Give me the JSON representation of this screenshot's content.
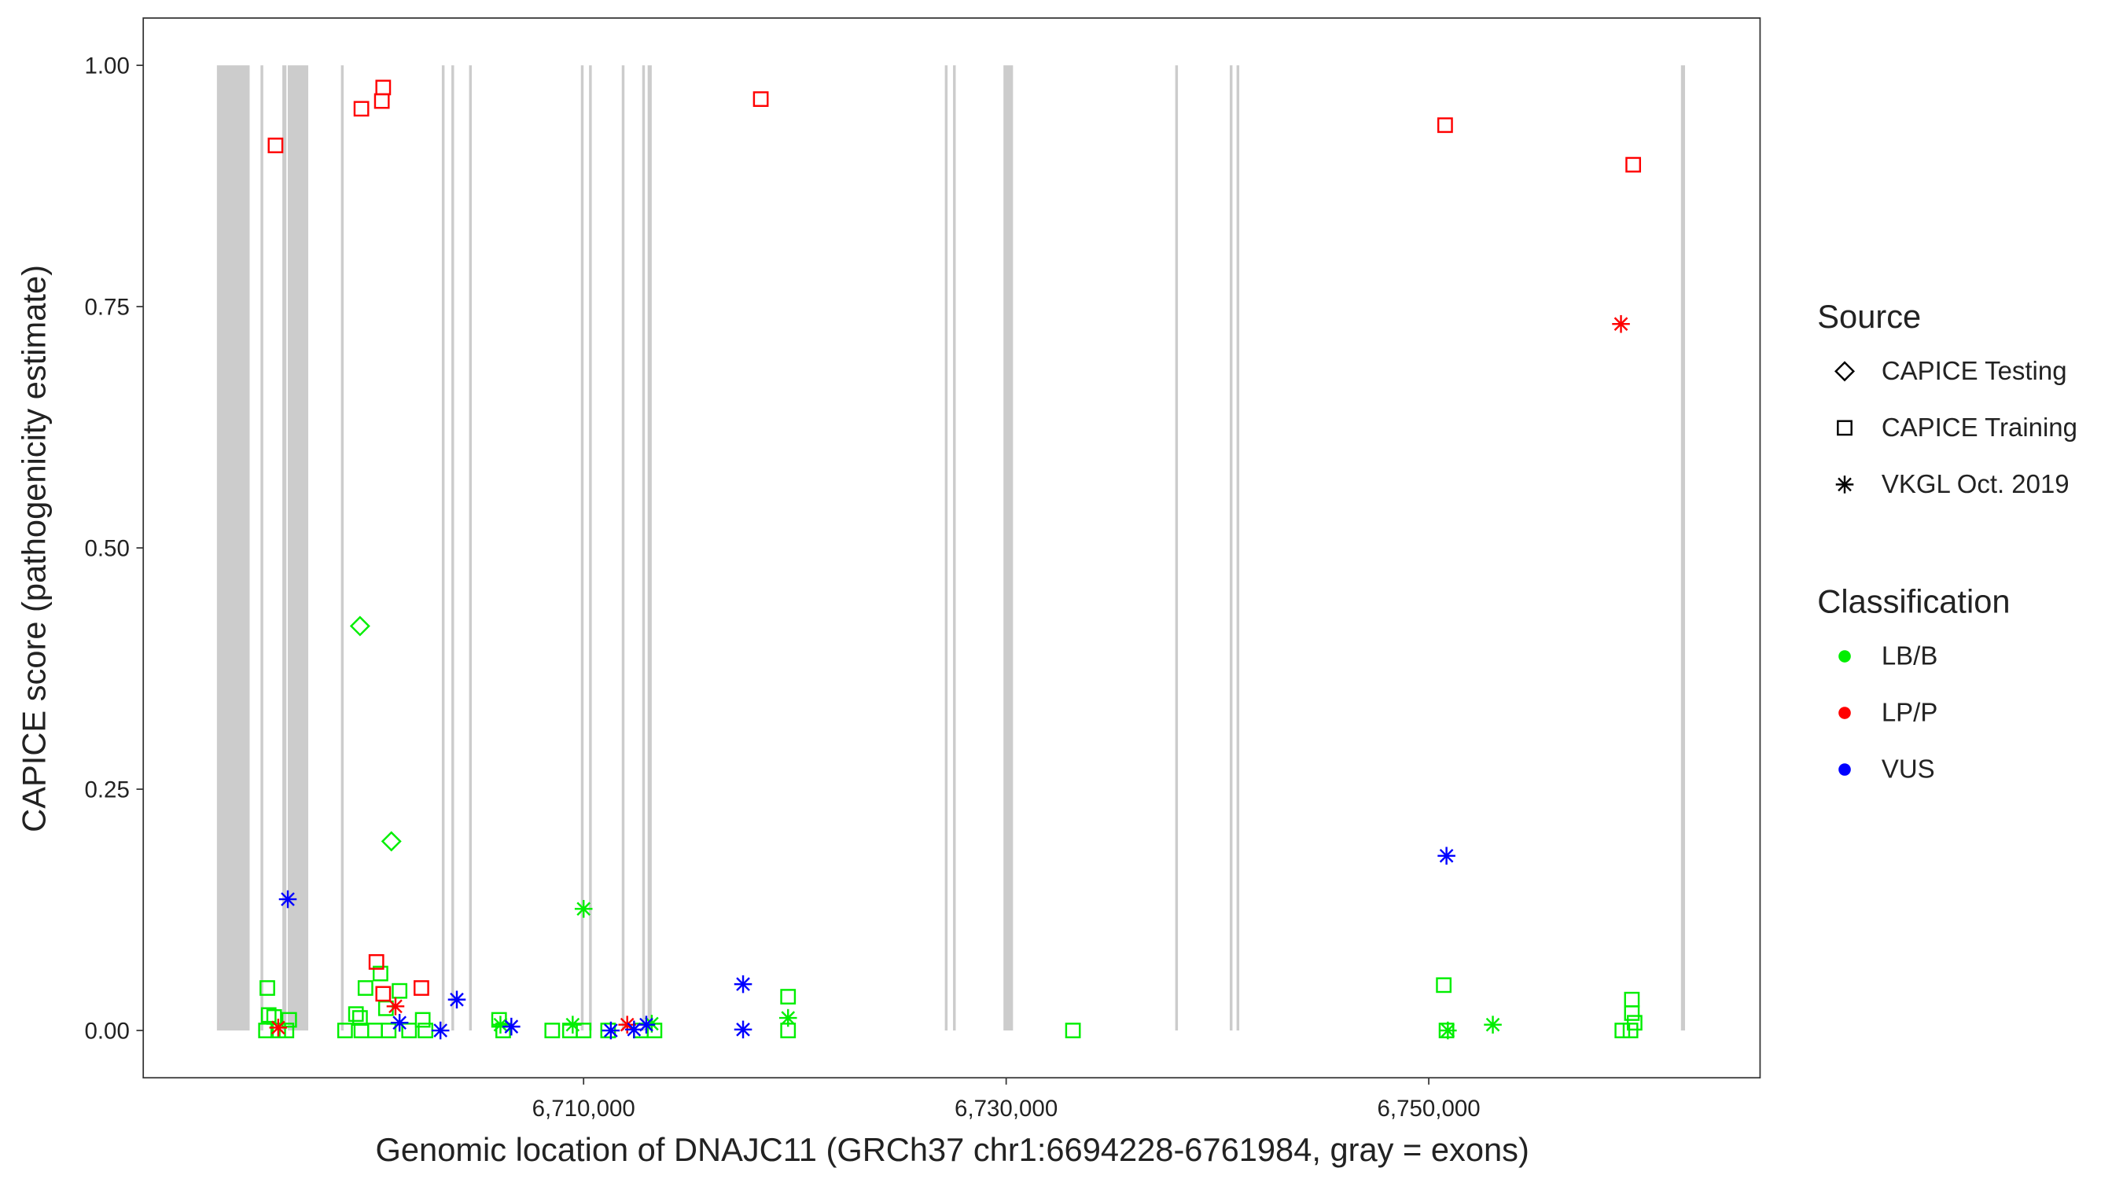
{
  "chart_data": {
    "type": "scatter",
    "x_label": "Genomic location of DNAJC11 (GRCh37 chr1:6694228-6761984, gray = exons)",
    "y_label": "CAPICE score (pathogenicity estimate)",
    "xlim": [
      6689160,
      6765680
    ],
    "ylim": [
      -0.049,
      1.049
    ],
    "xticks": [
      {
        "value": 6710000,
        "label": "6,710,000"
      },
      {
        "value": 6730000,
        "label": "6,730,000"
      },
      {
        "value": 6750000,
        "label": "6,750,000"
      }
    ],
    "yticks": [
      {
        "value": 0,
        "label": "0.00"
      },
      {
        "value": 0.25,
        "label": "0.25"
      },
      {
        "value": 0.5,
        "label": "0.50"
      },
      {
        "value": 0.75,
        "label": "0.75"
      },
      {
        "value": 1,
        "label": "1.00"
      }
    ],
    "exon_color": "#cccccc",
    "exons": [
      [
        6692645,
        6694194
      ],
      [
        6694710,
        6694839
      ],
      [
        6695742,
        6695935
      ],
      [
        6696000,
        6696968
      ],
      [
        6698516,
        6698645
      ],
      [
        6703290,
        6703419
      ],
      [
        6703742,
        6703871
      ],
      [
        6704581,
        6704710
      ],
      [
        6709871,
        6710000
      ],
      [
        6710258,
        6710387
      ],
      [
        6711806,
        6711935
      ],
      [
        6712774,
        6712903
      ],
      [
        6713032,
        6713226
      ],
      [
        6727097,
        6727226
      ],
      [
        6727484,
        6727613
      ],
      [
        6729871,
        6730323
      ],
      [
        6738000,
        6738129
      ],
      [
        6740581,
        6740710
      ],
      [
        6740903,
        6741032
      ],
      [
        6761935,
        6762129
      ]
    ],
    "legend_position": "right",
    "source_title": "Source",
    "sources": [
      {
        "name": "CAPICE Testing",
        "shape": "diamond"
      },
      {
        "name": "CAPICE Training",
        "shape": "square"
      },
      {
        "name": "VKGL Oct. 2019",
        "shape": "asterisk"
      }
    ],
    "classification_title": "Classification",
    "classifications": [
      {
        "name": "LB/B",
        "color": "#00ee00"
      },
      {
        "name": "LP/P",
        "color": "#ff0000"
      },
      {
        "name": "VUS",
        "color": "#0000ff"
      }
    ],
    "series": [
      {
        "source": "CAPICE Training",
        "classification": "LB/B",
        "x": [
          6695032,
          6695097,
          6695355,
          6696065,
          6694968,
          6695548,
          6695935,
          6698710,
          6699226,
          6699419,
          6699677,
          6700387,
          6700645,
          6701290,
          6702387,
          6699484,
          6700129,
          6700774,
          6701742,
          6702516,
          6706000,
          6706194,
          6708516,
          6709355,
          6710000,
          6711161,
          6712710,
          6713355,
          6719677,
          6719677,
          6733161,
          6750710,
          6750839,
          6759613,
          6759613,
          6759742,
          6759161,
          6759548
        ],
        "y": [
          0.044,
          0.016,
          0.014,
          0.011,
          0,
          0,
          0,
          0,
          0.017,
          0.013,
          0.044,
          0.059,
          0.023,
          0.041,
          0.011,
          0,
          0,
          0,
          0,
          0,
          0.011,
          0,
          0,
          0,
          0,
          0,
          0,
          0,
          0.035,
          0,
          0,
          0.047,
          0,
          0.032,
          0.018,
          0.008,
          0,
          0
        ]
      },
      {
        "source": "CAPICE Training",
        "classification": "LP/P",
        "x": [
          6695419,
          6699484,
          6700516,
          6700452,
          6718387,
          6750774,
          6759677,
          6700194,
          6700516,
          6702323
        ],
        "y": [
          0.917,
          0.955,
          0.977,
          0.963,
          0.965,
          0.938,
          0.897,
          0.071,
          0.038,
          0.044
        ]
      },
      {
        "source": "CAPICE Testing",
        "classification": "LB/B",
        "x": [
          6699419,
          6700903
        ],
        "y": [
          0.419,
          0.196
        ]
      },
      {
        "source": "VKGL Oct. 2019",
        "classification": "LB/B",
        "x": [
          6710000,
          6719677,
          6753032,
          6750903,
          6709484,
          6713226,
          6706065
        ],
        "y": [
          0.126,
          0.013,
          0.006,
          0,
          0.006,
          0.007,
          0.006
        ]
      },
      {
        "source": "VKGL Oct. 2019",
        "classification": "LP/P",
        "x": [
          6695548,
          6701097,
          6712065,
          6759097
        ],
        "y": [
          0.003,
          0.025,
          0.006,
          0.732
        ]
      },
      {
        "source": "VKGL Oct. 2019",
        "classification": "VUS",
        "x": [
          6696000,
          6750839,
          6704000,
          6703226,
          6701290,
          6706581,
          6711290,
          6712387,
          6717548,
          6717548,
          6712968
        ],
        "y": [
          0.136,
          0.181,
          0.032,
          0,
          0.008,
          0.004,
          0,
          0.001,
          0.048,
          0.001,
          0.006
        ]
      }
    ]
  }
}
